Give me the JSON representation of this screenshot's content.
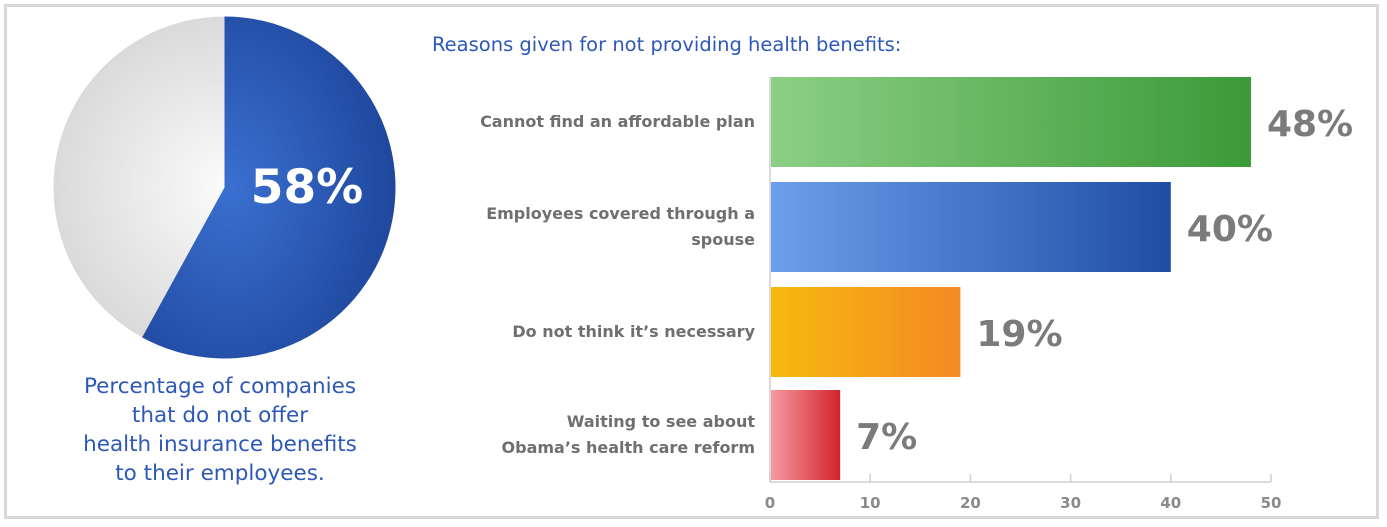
{
  "pie": {
    "value_text": "58%",
    "share": 58,
    "caption": [
      "Percentage of companies",
      "that do not offer",
      "health insurance benefits",
      "to their employees."
    ],
    "colors": {
      "slice": "#2450a8",
      "rest": "#e4e4e4"
    }
  },
  "chart_data": {
    "type": "bar",
    "title": "Reasons given for not providing health benefits:",
    "categories": [
      "Cannot find an affordable plan",
      "Employees covered through a spouse",
      "Do not think it’s necessary",
      "Waiting to see about Obama’s health care reform"
    ],
    "category_lines": [
      [
        "Cannot find an affordable plan"
      ],
      [
        "Employees covered through a",
        "spouse"
      ],
      [
        "Do not think it’s necessary"
      ],
      [
        "Waiting to see about",
        "Obama’s health care reform"
      ]
    ],
    "values": [
      48,
      40,
      19,
      7
    ],
    "value_labels": [
      "48%",
      "40%",
      "19%",
      "7%"
    ],
    "xlim": [
      0,
      50
    ],
    "ticks": [
      0,
      10,
      20,
      30,
      40,
      50
    ],
    "orientation": "horizontal",
    "colors": [
      [
        "#8ccf86",
        "#3b9a37"
      ],
      [
        "#6b9eec",
        "#1f4ea3"
      ],
      [
        "#f7b90f",
        "#f38a22"
      ],
      [
        "#f59aa0",
        "#d3232b"
      ]
    ]
  }
}
